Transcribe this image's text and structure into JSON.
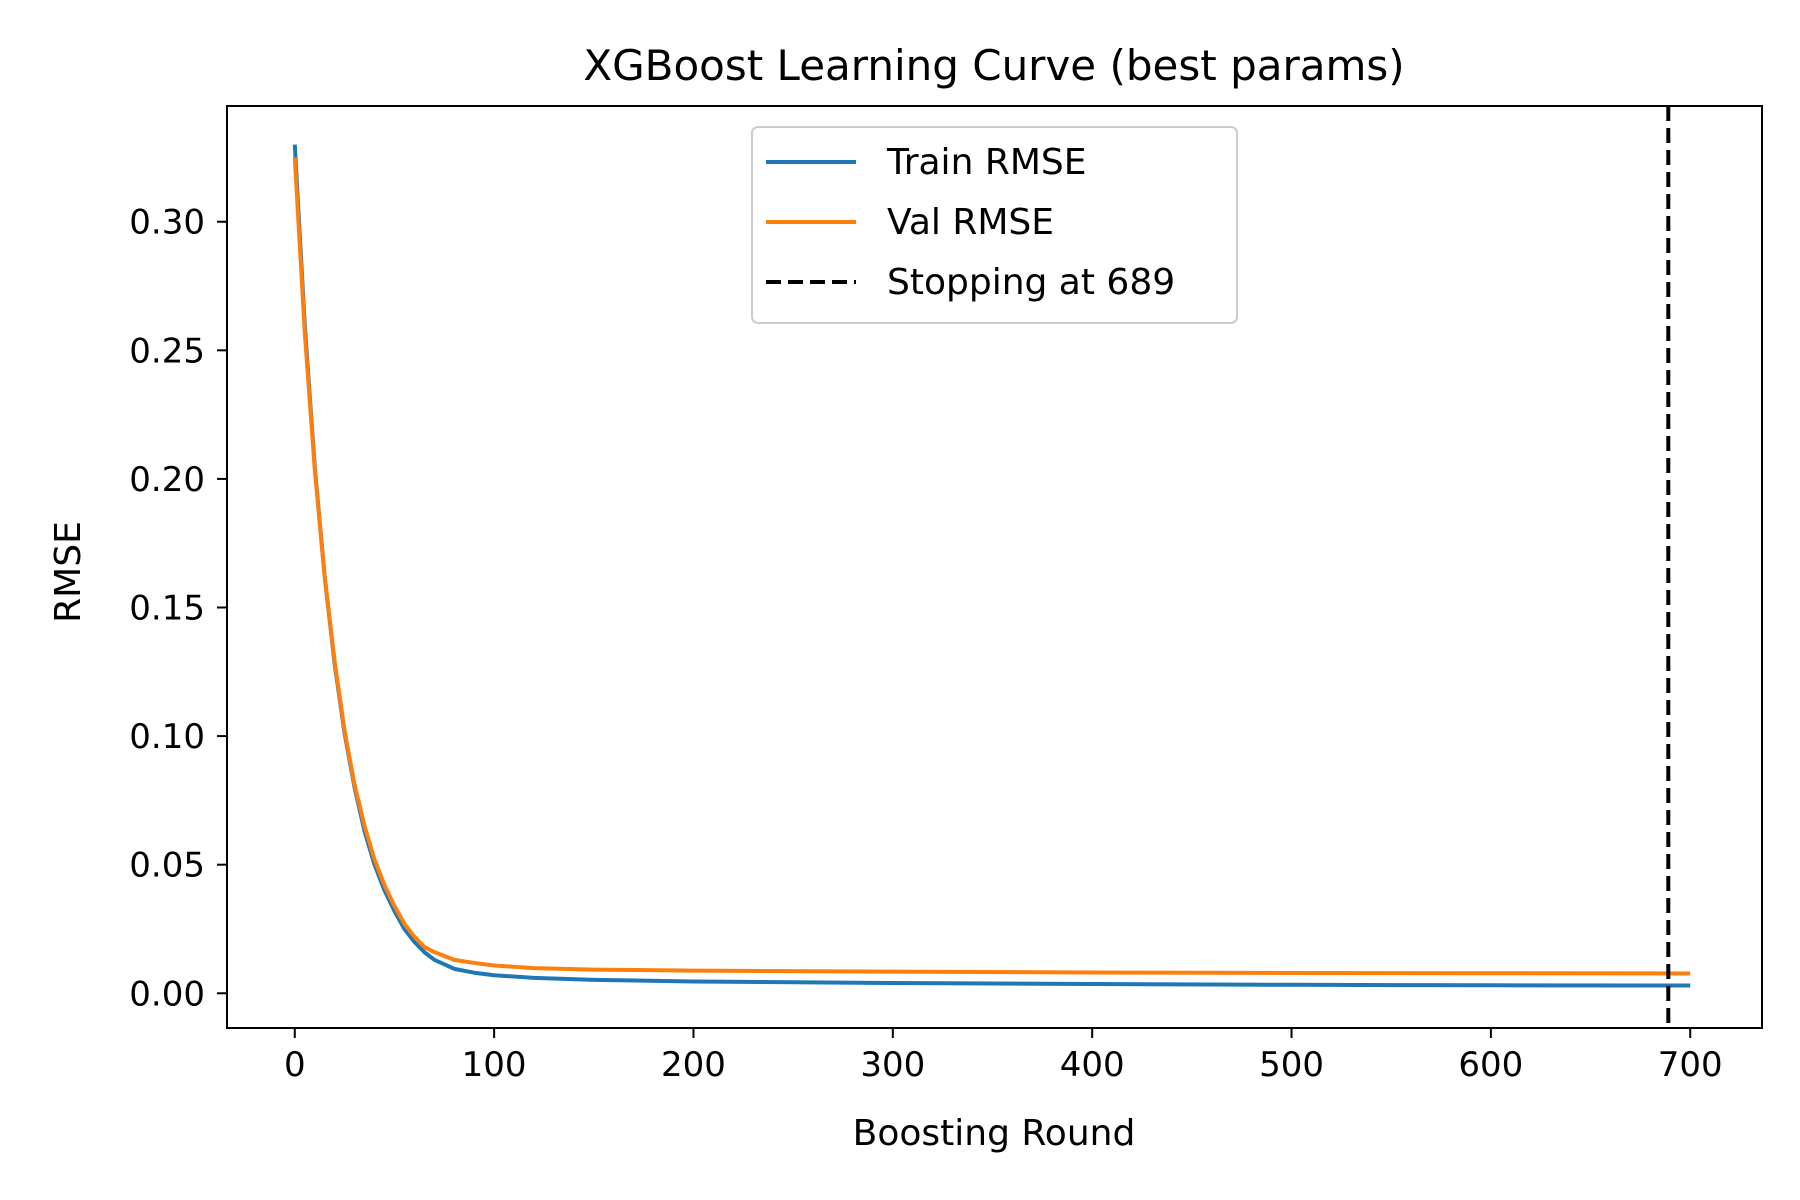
{
  "chart_data": {
    "type": "line",
    "title": "XGBoost Learning Curve (best params)",
    "xlabel": "Boosting Round",
    "ylabel": "RMSE",
    "xlim": [
      -34,
      736
    ],
    "ylim": [
      -0.0135,
      0.345
    ],
    "x_ticks": [
      0,
      100,
      200,
      300,
      400,
      500,
      600,
      700
    ],
    "y_ticks": [
      0.0,
      0.05,
      0.1,
      0.15,
      0.2,
      0.25,
      0.3
    ],
    "y_tick_labels": [
      "0.00",
      "0.05",
      "0.10",
      "0.15",
      "0.20",
      "0.25",
      "0.30"
    ],
    "grid": false,
    "legend_position": "top-center",
    "series": [
      {
        "name": "Train RMSE",
        "color": "#1f77b4",
        "x": [
          0,
          5,
          10,
          15,
          20,
          25,
          30,
          35,
          40,
          45,
          50,
          55,
          60,
          65,
          70,
          80,
          90,
          100,
          120,
          150,
          200,
          300,
          400,
          500,
          600,
          700
        ],
        "y": [
          0.33,
          0.26,
          0.205,
          0.162,
          0.128,
          0.101,
          0.08,
          0.063,
          0.05,
          0.04,
          0.032,
          0.025,
          0.02,
          0.016,
          0.013,
          0.0095,
          0.008,
          0.007,
          0.006,
          0.0052,
          0.0046,
          0.004,
          0.0036,
          0.0033,
          0.0031,
          0.003
        ]
      },
      {
        "name": "Val RMSE",
        "color": "#ff7f0e",
        "x": [
          0,
          5,
          10,
          15,
          20,
          25,
          30,
          35,
          40,
          45,
          50,
          55,
          60,
          65,
          70,
          80,
          90,
          100,
          120,
          150,
          200,
          300,
          400,
          500,
          600,
          700
        ],
        "y": [
          0.325,
          0.257,
          0.204,
          0.162,
          0.129,
          0.102,
          0.081,
          0.065,
          0.052,
          0.042,
          0.034,
          0.027,
          0.022,
          0.018,
          0.016,
          0.013,
          0.0118,
          0.0108,
          0.0098,
          0.0092,
          0.0088,
          0.0084,
          0.0081,
          0.0079,
          0.0078,
          0.0077
        ]
      }
    ],
    "annotations": [
      {
        "type": "vline",
        "x": 689,
        "style": "dashed",
        "color": "#000000",
        "label": "Stopping at 689"
      }
    ]
  }
}
